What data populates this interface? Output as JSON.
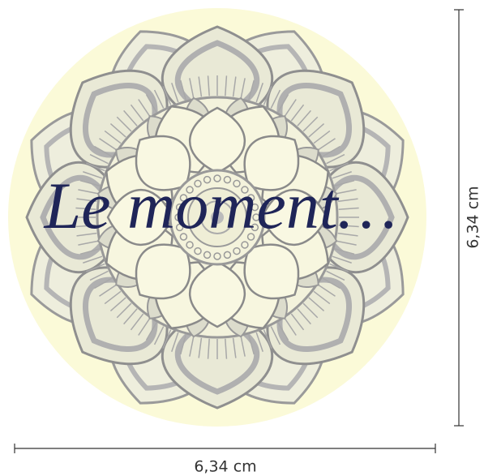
{
  "sticker": {
    "text": "Le moment…"
  },
  "dimensions": {
    "width": "6,34 cm",
    "height": "6,34 cm"
  }
}
